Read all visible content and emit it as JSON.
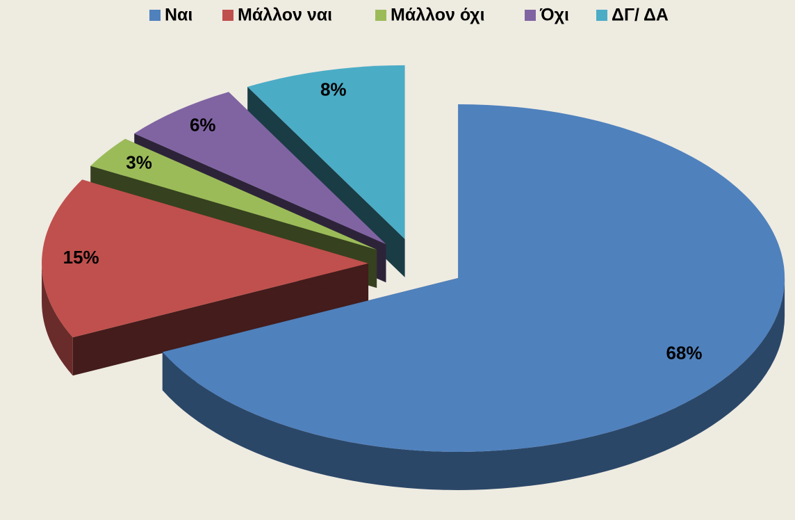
{
  "chart_data": {
    "type": "pie",
    "categories": [
      "Ναι",
      "Μάλλον ναι",
      "Μάλλον όχι",
      "Όχι",
      "ΔΓ/ ΔΑ"
    ],
    "values": [
      68,
      15,
      3,
      6,
      8
    ],
    "value_labels": [
      "68%",
      "15%",
      "3%",
      "6%",
      "8%"
    ],
    "colors": [
      "#4f81bd",
      "#c0504d",
      "#9bbb59",
      "#8064a2",
      "#4bacc6"
    ],
    "legend": "top"
  }
}
